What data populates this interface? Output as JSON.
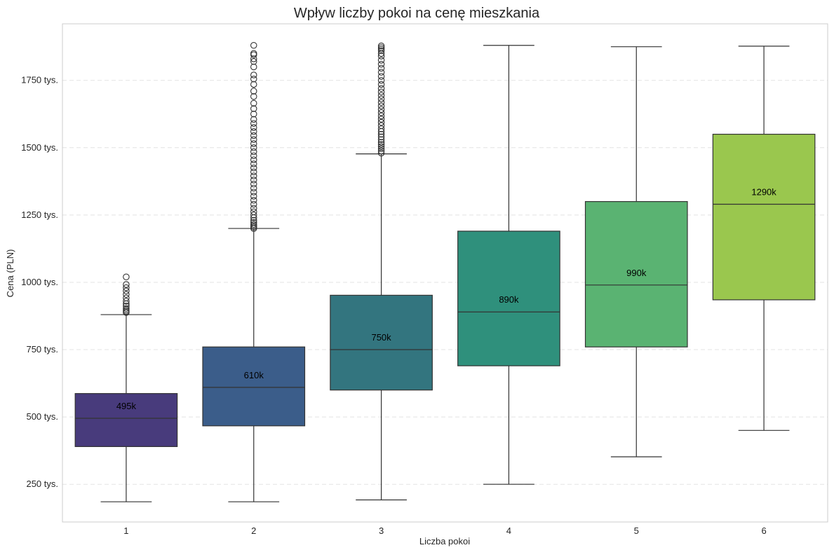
{
  "chart_data": {
    "type": "box",
    "title": "Wpływ liczby pokoi na cenę mieszkania",
    "xlabel": "Liczba pokoi",
    "ylabel": "Cena (PLN)",
    "ylim": [
      110,
      1960
    ],
    "y_ticks": [
      {
        "value": 250,
        "label": "250 tys."
      },
      {
        "value": 500,
        "label": "500 tys."
      },
      {
        "value": 750,
        "label": "750 tys."
      },
      {
        "value": 1000,
        "label": "1000 tys."
      },
      {
        "value": 1250,
        "label": "1250 tys."
      },
      {
        "value": 1500,
        "label": "1500 tys."
      },
      {
        "value": 1750,
        "label": "1750 tys."
      }
    ],
    "grid": "y-dashed",
    "categories": [
      "1",
      "2",
      "3",
      "4",
      "5",
      "6"
    ],
    "boxes": [
      {
        "category": "1",
        "whisker_low": 185,
        "q1": 390,
        "median": 495,
        "q3": 587,
        "whisker_high": 880,
        "median_label": "495k",
        "color": "#483b7c",
        "outliers": [
          888,
          892,
          897,
          903,
          912,
          920,
          930,
          942,
          955,
          968,
          980,
          992,
          1020
        ]
      },
      {
        "category": "2",
        "whisker_low": 185,
        "q1": 467,
        "median": 610,
        "q3": 760,
        "whisker_high": 1200,
        "median_label": "610k",
        "color": "#3b5d8a",
        "outliers": [
          1200,
          1205,
          1210,
          1215,
          1222,
          1230,
          1240,
          1250,
          1262,
          1275,
          1290,
          1305,
          1320,
          1335,
          1350,
          1365,
          1380,
          1395,
          1410,
          1425,
          1440,
          1455,
          1470,
          1485,
          1500,
          1515,
          1530,
          1545,
          1560,
          1575,
          1590,
          1605,
          1625,
          1645,
          1665,
          1690,
          1710,
          1735,
          1755,
          1770,
          1800,
          1820,
          1830,
          1845,
          1850,
          1880
        ]
      },
      {
        "category": "3",
        "whisker_low": 192,
        "q1": 600,
        "median": 750,
        "q3": 952,
        "whisker_high": 1477,
        "median_label": "750k",
        "color": "#33757f",
        "outliers": [
          1480,
          1488,
          1496,
          1504,
          1512,
          1520,
          1530,
          1540,
          1550,
          1560,
          1570,
          1582,
          1594,
          1606,
          1618,
          1630,
          1642,
          1655,
          1668,
          1681,
          1694,
          1707,
          1720,
          1735,
          1750,
          1765,
          1780,
          1795,
          1810,
          1825,
          1840,
          1850,
          1860,
          1866,
          1872,
          1878
        ]
      },
      {
        "category": "4",
        "whisker_low": 250,
        "q1": 690,
        "median": 890,
        "q3": 1190,
        "whisker_high": 1880,
        "median_label": "890k",
        "color": "#2f907c",
        "outliers": []
      },
      {
        "category": "5",
        "whisker_low": 352,
        "q1": 760,
        "median": 990,
        "q3": 1300,
        "whisker_high": 1875,
        "median_label": "990k",
        "color": "#5ab372",
        "outliers": []
      },
      {
        "category": "6",
        "whisker_low": 450,
        "q1": 935,
        "median": 1290,
        "q3": 1550,
        "whisker_high": 1877,
        "median_label": "1290k",
        "color": "#9ac74e",
        "outliers": []
      }
    ]
  }
}
